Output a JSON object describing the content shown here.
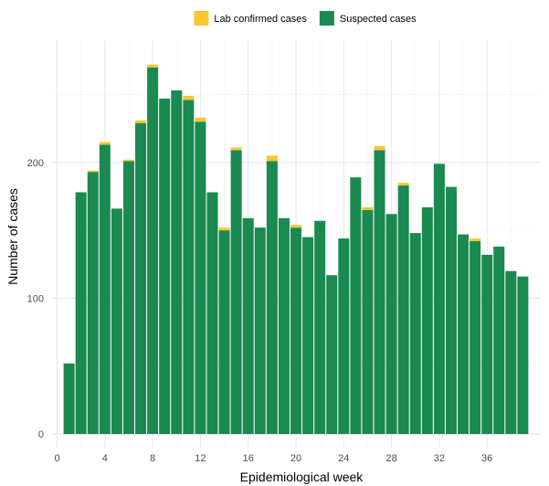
{
  "chart_data": {
    "type": "bar",
    "stacked": true,
    "xlabel": "Epidemiological week",
    "ylabel": "Number of cases",
    "xlim": [
      -0.5,
      40.5
    ],
    "ylim": [
      -10,
      290
    ],
    "xticks": [
      0,
      4,
      8,
      12,
      16,
      20,
      24,
      28,
      32,
      36
    ],
    "yticks": [
      0,
      100,
      200
    ],
    "legend_position": "top",
    "grid": true,
    "weeks": [
      1,
      2,
      3,
      4,
      5,
      6,
      7,
      8,
      9,
      10,
      11,
      12,
      13,
      14,
      15,
      16,
      17,
      18,
      19,
      20,
      21,
      22,
      23,
      24,
      25,
      26,
      27,
      28,
      29,
      30,
      31,
      32,
      33,
      34,
      35,
      36,
      37,
      38,
      39
    ],
    "series": [
      {
        "name": "Suspected cases",
        "color": "#1a8a50",
        "values": [
          52,
          178,
          193,
          213,
          166,
          201,
          229,
          270,
          247,
          253,
          246,
          230,
          178,
          150,
          209,
          159,
          152,
          201,
          159,
          152,
          145,
          157,
          117,
          144,
          189,
          165,
          209,
          162,
          183,
          148,
          167,
          199,
          182,
          147,
          142,
          132,
          138,
          120,
          116
        ]
      },
      {
        "name": "Lab confirmed cases",
        "color": "#f8c630",
        "values": [
          0,
          0,
          1,
          2,
          0,
          1,
          2,
          2,
          0,
          0,
          3,
          3,
          0,
          2,
          2,
          0,
          0,
          4,
          0,
          2,
          0,
          0,
          0,
          0,
          0,
          2,
          3,
          0,
          2,
          0,
          0,
          0,
          0,
          0,
          2,
          0,
          0,
          0,
          0
        ]
      }
    ]
  }
}
